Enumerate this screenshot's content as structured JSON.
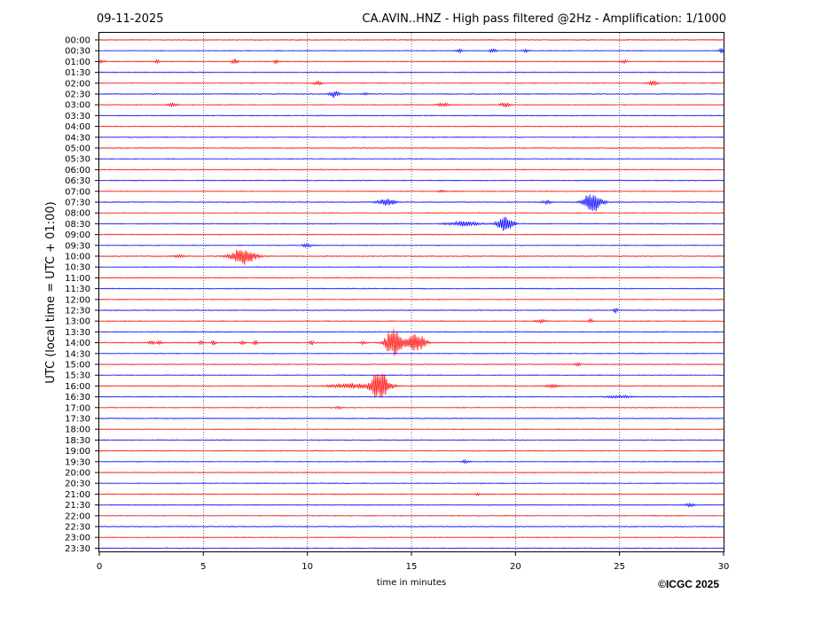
{
  "date": "09-11-2025",
  "station_title": "CA.AVIN..HNZ - High pass filtered @2Hz - Amplification: 1/1000",
  "copyright": "©ICGC 2025",
  "chart_data": {
    "type": "line",
    "xlabel": "time in minutes",
    "ylabel": "UTC (local time = UTC + 01:00)",
    "xlim": [
      0,
      30
    ],
    "x_ticks": [
      "0",
      "5",
      "10",
      "15",
      "20",
      "25",
      "30"
    ],
    "grid": "vertical dotted lines at 5-minute intervals",
    "trace_colors": [
      "#ff0000",
      "#0000ff"
    ],
    "rows": [
      "00:00",
      "00:30",
      "01:00",
      "01:30",
      "02:00",
      "02:30",
      "03:00",
      "03:30",
      "04:00",
      "04:30",
      "05:00",
      "05:30",
      "06:00",
      "06:30",
      "07:00",
      "07:30",
      "08:00",
      "08:30",
      "09:00",
      "09:30",
      "10:00",
      "10:30",
      "11:00",
      "11:30",
      "12:00",
      "12:30",
      "13:00",
      "13:30",
      "14:00",
      "14:30",
      "15:00",
      "15:30",
      "16:00",
      "16:30",
      "17:00",
      "17:30",
      "18:00",
      "18:30",
      "19:00",
      "19:30",
      "20:00",
      "20:30",
      "21:00",
      "21:30",
      "22:00",
      "22:30",
      "23:00",
      "23:30"
    ],
    "events": [
      {
        "row": 1,
        "t": 17.3,
        "amp": 0.25,
        "dur": 0.2
      },
      {
        "row": 1,
        "t": 18.9,
        "amp": 0.3,
        "dur": 0.2
      },
      {
        "row": 1,
        "t": 20.5,
        "amp": 0.25,
        "dur": 0.2
      },
      {
        "row": 1,
        "t": 29.9,
        "amp": 0.35,
        "dur": 0.15
      },
      {
        "row": 2,
        "t": 0.1,
        "amp": 0.2,
        "dur": 0.2
      },
      {
        "row": 2,
        "t": 2.8,
        "amp": 0.25,
        "dur": 0.15
      },
      {
        "row": 2,
        "t": 6.5,
        "amp": 0.45,
        "dur": 0.2
      },
      {
        "row": 2,
        "t": 8.5,
        "amp": 0.3,
        "dur": 0.15
      },
      {
        "row": 2,
        "t": 25.2,
        "amp": 0.25,
        "dur": 0.2
      },
      {
        "row": 4,
        "t": 10.5,
        "amp": 0.3,
        "dur": 0.3
      },
      {
        "row": 4,
        "t": 26.6,
        "amp": 0.35,
        "dur": 0.3
      },
      {
        "row": 5,
        "t": 11.3,
        "amp": 0.55,
        "dur": 0.3
      },
      {
        "row": 5,
        "t": 12.8,
        "amp": 0.2,
        "dur": 0.2
      },
      {
        "row": 6,
        "t": 3.5,
        "amp": 0.25,
        "dur": 0.3
      },
      {
        "row": 6,
        "t": 16.5,
        "amp": 0.25,
        "dur": 0.4
      },
      {
        "row": 6,
        "t": 19.5,
        "amp": 0.35,
        "dur": 0.3
      },
      {
        "row": 14,
        "t": 16.5,
        "amp": 0.25,
        "dur": 0.2
      },
      {
        "row": 15,
        "t": 13.8,
        "amp": 0.5,
        "dur": 0.6
      },
      {
        "row": 15,
        "t": 21.5,
        "amp": 0.25,
        "dur": 0.3
      },
      {
        "row": 15,
        "t": 23.7,
        "amp": 1.6,
        "dur": 0.6
      },
      {
        "row": 17,
        "t": 17.5,
        "amp": 0.35,
        "dur": 1.0
      },
      {
        "row": 17,
        "t": 19.5,
        "amp": 1.25,
        "dur": 0.5
      },
      {
        "row": 19,
        "t": 10.0,
        "amp": 0.25,
        "dur": 0.3
      },
      {
        "row": 20,
        "t": 6.9,
        "amp": 1.3,
        "dur": 0.8
      },
      {
        "row": 20,
        "t": 3.8,
        "amp": 0.2,
        "dur": 0.4
      },
      {
        "row": 25,
        "t": 24.8,
        "amp": 0.4,
        "dur": 0.15
      },
      {
        "row": 26,
        "t": 21.2,
        "amp": 0.25,
        "dur": 0.3
      },
      {
        "row": 26,
        "t": 23.6,
        "amp": 0.35,
        "dur": 0.15
      },
      {
        "row": 28,
        "t": 2.5,
        "amp": 0.35,
        "dur": 0.2
      },
      {
        "row": 28,
        "t": 2.9,
        "amp": 0.3,
        "dur": 0.15
      },
      {
        "row": 28,
        "t": 4.9,
        "amp": 0.3,
        "dur": 0.15
      },
      {
        "row": 28,
        "t": 5.5,
        "amp": 0.35,
        "dur": 0.15
      },
      {
        "row": 28,
        "t": 6.9,
        "amp": 0.3,
        "dur": 0.15
      },
      {
        "row": 28,
        "t": 7.5,
        "amp": 0.35,
        "dur": 0.15
      },
      {
        "row": 28,
        "t": 10.2,
        "amp": 0.3,
        "dur": 0.15
      },
      {
        "row": 28,
        "t": 12.7,
        "amp": 0.3,
        "dur": 0.15
      },
      {
        "row": 28,
        "t": 14.1,
        "amp": 2.3,
        "dur": 0.5
      },
      {
        "row": 28,
        "t": 14.7,
        "amp": 0.6,
        "dur": 0.4
      },
      {
        "row": 28,
        "t": 15.3,
        "amp": 1.5,
        "dur": 0.5
      },
      {
        "row": 30,
        "t": 23.0,
        "amp": 0.2,
        "dur": 0.2
      },
      {
        "row": 32,
        "t": 13.5,
        "amp": 2.4,
        "dur": 0.6
      },
      {
        "row": 32,
        "t": 12.2,
        "amp": 0.35,
        "dur": 1.4
      },
      {
        "row": 32,
        "t": 21.8,
        "amp": 0.2,
        "dur": 0.6
      },
      {
        "row": 33,
        "t": 25.0,
        "amp": 0.2,
        "dur": 0.8
      },
      {
        "row": 34,
        "t": 11.5,
        "amp": 0.2,
        "dur": 0.2
      },
      {
        "row": 39,
        "t": 17.6,
        "amp": 0.2,
        "dur": 0.3
      },
      {
        "row": 42,
        "t": 18.2,
        "amp": 0.2,
        "dur": 0.1
      },
      {
        "row": 43,
        "t": 28.4,
        "amp": 0.25,
        "dur": 0.3
      }
    ]
  }
}
